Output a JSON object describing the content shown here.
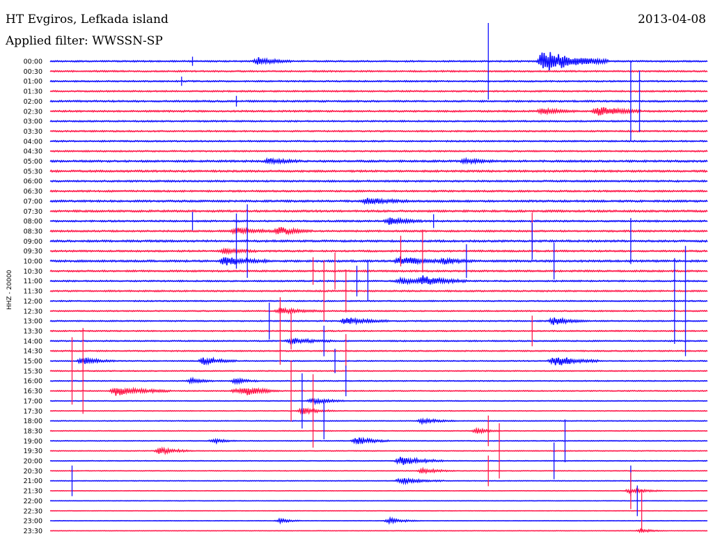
{
  "header": {
    "station": "HT Evgiros, Lefkada island",
    "date": "2013-04-08",
    "filter_label": "Applied filter: WWSSN-SP"
  },
  "chart_data": {
    "type": "line",
    "title": "HT Evgiros, Lefkada island",
    "subtitle": "Applied filter: WWSSN-SP",
    "date": "2013-04-08",
    "ylabel": "HHZ - 20000",
    "xlabel": "",
    "grid": false,
    "trace_colors": [
      "#1010ff",
      "#ff1a4b"
    ],
    "row_labels": [
      "00:00",
      "00:30",
      "01:00",
      "01:30",
      "02:00",
      "02:30",
      "03:00",
      "03:30",
      "04:00",
      "04:30",
      "05:00",
      "05:30",
      "06:00",
      "06:30",
      "07:00",
      "07:30",
      "08:00",
      "08:30",
      "09:00",
      "09:30",
      "10:00",
      "10:30",
      "11:00",
      "11:30",
      "12:00",
      "12:30",
      "13:00",
      "13:30",
      "14:00",
      "14:30",
      "15:00",
      "15:30",
      "16:00",
      "16:30",
      "17:00",
      "17:30",
      "18:00",
      "18:30",
      "19:00",
      "19:30",
      "20:00",
      "20:30",
      "21:00",
      "21:30",
      "22:00",
      "22:30",
      "23:00",
      "23:30"
    ],
    "minutes_per_row": 30,
    "noise_level": [
      0.6,
      0.6,
      0.6,
      0.6,
      0.7,
      0.7,
      0.6,
      0.6,
      0.6,
      0.6,
      0.8,
      0.8,
      0.7,
      0.7,
      0.8,
      0.8,
      0.7,
      0.7,
      0.8,
      0.7,
      0.8,
      0.7,
      0.6,
      0.6,
      0.5,
      0.5,
      0.5,
      0.5,
      0.5,
      0.5,
      0.4,
      0.4,
      0.4,
      0.4,
      0.3,
      0.3,
      0.3,
      0.3,
      0.3,
      0.3,
      0.3,
      0.25,
      0.25,
      0.2,
      0.15,
      0.15,
      0.15,
      0.15
    ],
    "events": [
      {
        "row": 0,
        "minute": 9.5,
        "amplitude": 4.0,
        "duration_min": 1.5
      },
      {
        "row": 0,
        "minute": 22.5,
        "amplitude": 12.0,
        "duration_min": 3.0
      },
      {
        "row": 5,
        "minute": 22.5,
        "amplitude": 3.0,
        "duration_min": 1.5
      },
      {
        "row": 5,
        "minute": 25.0,
        "amplitude": 5.0,
        "duration_min": 2.0
      },
      {
        "row": 10,
        "minute": 10.0,
        "amplitude": 2.5,
        "duration_min": 1.5
      },
      {
        "row": 10,
        "minute": 19.0,
        "amplitude": 2.5,
        "duration_min": 1.5
      },
      {
        "row": 14,
        "minute": 14.5,
        "amplitude": 3.0,
        "duration_min": 2.0
      },
      {
        "row": 16,
        "minute": 15.5,
        "amplitude": 4.0,
        "duration_min": 1.5
      },
      {
        "row": 17,
        "minute": 8.5,
        "amplitude": 3.0,
        "duration_min": 2.0
      },
      {
        "row": 17,
        "minute": 10.5,
        "amplitude": 4.0,
        "duration_min": 1.5
      },
      {
        "row": 19,
        "minute": 8.0,
        "amplitude": 2.5,
        "duration_min": 1.5
      },
      {
        "row": 20,
        "minute": 8.0,
        "amplitude": 5.0,
        "duration_min": 2.0
      },
      {
        "row": 20,
        "minute": 16.0,
        "amplitude": 5.0,
        "duration_min": 2.0
      },
      {
        "row": 20,
        "minute": 18.0,
        "amplitude": 3.0,
        "duration_min": 1.5
      },
      {
        "row": 22,
        "minute": 17.0,
        "amplitude": 5.0,
        "duration_min": 2.0
      },
      {
        "row": 22,
        "minute": 16.0,
        "amplitude": 3.0,
        "duration_min": 1.5
      },
      {
        "row": 25,
        "minute": 10.5,
        "amplitude": 3.0,
        "duration_min": 2.0
      },
      {
        "row": 26,
        "minute": 13.5,
        "amplitude": 3.5,
        "duration_min": 2.0
      },
      {
        "row": 26,
        "minute": 23.0,
        "amplitude": 4.0,
        "duration_min": 1.5
      },
      {
        "row": 28,
        "minute": 11.0,
        "amplitude": 3.0,
        "duration_min": 2.0
      },
      {
        "row": 30,
        "minute": 1.5,
        "amplitude": 4.0,
        "duration_min": 1.5
      },
      {
        "row": 30,
        "minute": 7.0,
        "amplitude": 4.0,
        "duration_min": 1.5
      },
      {
        "row": 30,
        "minute": 23.0,
        "amplitude": 6.0,
        "duration_min": 2.0
      },
      {
        "row": 32,
        "minute": 6.5,
        "amplitude": 2.5,
        "duration_min": 1.0
      },
      {
        "row": 32,
        "minute": 8.5,
        "amplitude": 2.5,
        "duration_min": 1.0
      },
      {
        "row": 33,
        "minute": 3.0,
        "amplitude": 5.0,
        "duration_min": 2.5
      },
      {
        "row": 33,
        "minute": 9.0,
        "amplitude": 3.5,
        "duration_min": 1.5
      },
      {
        "row": 33,
        "minute": 8.5,
        "amplitude": 2.5,
        "duration_min": 1.5
      },
      {
        "row": 34,
        "minute": 12.0,
        "amplitude": 3.0,
        "duration_min": 1.5
      },
      {
        "row": 35,
        "minute": 11.5,
        "amplitude": 3.5,
        "duration_min": 1.5
      },
      {
        "row": 36,
        "minute": 17.0,
        "amplitude": 2.5,
        "duration_min": 1.5
      },
      {
        "row": 37,
        "minute": 19.5,
        "amplitude": 2.5,
        "duration_min": 1.0
      },
      {
        "row": 38,
        "minute": 14.0,
        "amplitude": 4.0,
        "duration_min": 1.5
      },
      {
        "row": 38,
        "minute": 7.5,
        "amplitude": 2.5,
        "duration_min": 1.0
      },
      {
        "row": 39,
        "minute": 5.0,
        "amplitude": 3.5,
        "duration_min": 1.5
      },
      {
        "row": 40,
        "minute": 16.0,
        "amplitude": 5.0,
        "duration_min": 2.0
      },
      {
        "row": 41,
        "minute": 17.0,
        "amplitude": 2.5,
        "duration_min": 1.5
      },
      {
        "row": 42,
        "minute": 16.0,
        "amplitude": 3.0,
        "duration_min": 2.0
      },
      {
        "row": 43,
        "minute": 26.5,
        "amplitude": 2.5,
        "duration_min": 1.5
      },
      {
        "row": 46,
        "minute": 15.5,
        "amplitude": 2.5,
        "duration_min": 1.5
      },
      {
        "row": 46,
        "minute": 10.5,
        "amplitude": 2.0,
        "duration_min": 1.0
      },
      {
        "row": 47,
        "minute": 27.0,
        "amplitude": 2.0,
        "duration_min": 1.0
      }
    ],
    "spikes": [
      {
        "row": 0,
        "minute": 6.5,
        "amplitude": 3.0
      },
      {
        "row": 0,
        "minute": 20.0,
        "amplitude": 25.0
      },
      {
        "row": 2,
        "minute": 6.0,
        "amplitude": 3.0
      },
      {
        "row": 4,
        "minute": 8.5,
        "amplitude": 3.5
      },
      {
        "row": 4,
        "minute": 26.5,
        "amplitude": 26.0
      },
      {
        "row": 4,
        "minute": 26.9,
        "amplitude": 20.0
      },
      {
        "row": 16,
        "minute": 6.5,
        "amplitude": 6.0
      },
      {
        "row": 16,
        "minute": 17.5,
        "amplitude": 4.5
      },
      {
        "row": 17,
        "minute": 22.0,
        "amplitude": 12.0
      },
      {
        "row": 18,
        "minute": 8.5,
        "amplitude": 18.0
      },
      {
        "row": 18,
        "minute": 9.0,
        "amplitude": 24.0
      },
      {
        "row": 18,
        "minute": 22.0,
        "amplitude": 12.0
      },
      {
        "row": 18,
        "minute": 26.5,
        "amplitude": 15.0
      },
      {
        "row": 19,
        "minute": 16.0,
        "amplitude": 10.0
      },
      {
        "row": 19,
        "minute": 17.0,
        "amplitude": 14.0
      },
      {
        "row": 20,
        "minute": 19.0,
        "amplitude": 11.0
      },
      {
        "row": 20,
        "minute": 23.0,
        "amplitude": 12.0
      },
      {
        "row": 21,
        "minute": 12.0,
        "amplitude": 9.0
      },
      {
        "row": 21,
        "minute": 13.0,
        "amplitude": 12.0
      },
      {
        "row": 22,
        "minute": 14.0,
        "amplitude": 10.0
      },
      {
        "row": 22,
        "minute": 14.5,
        "amplitude": 13.0
      },
      {
        "row": 23,
        "minute": 12.5,
        "amplitude": 20.0
      },
      {
        "row": 23,
        "minute": 13.5,
        "amplitude": 14.0
      },
      {
        "row": 24,
        "minute": 28.5,
        "amplitude": 28.0
      },
      {
        "row": 24,
        "minute": 29.0,
        "amplitude": 36.0
      },
      {
        "row": 26,
        "minute": 10.0,
        "amplitude": 12.0
      },
      {
        "row": 27,
        "minute": 10.5,
        "amplitude": 22.0
      },
      {
        "row": 27,
        "minute": 11.0,
        "amplitude": 12.0
      },
      {
        "row": 27,
        "minute": 22.0,
        "amplitude": 10.0
      },
      {
        "row": 28,
        "minute": 12.5,
        "amplitude": 10.0
      },
      {
        "row": 29,
        "minute": 13.5,
        "amplitude": 11.0
      },
      {
        "row": 30,
        "minute": 13.0,
        "amplitude": 8.0
      },
      {
        "row": 31,
        "minute": 1.0,
        "amplitude": 22.0
      },
      {
        "row": 31,
        "minute": 1.5,
        "amplitude": 28.0
      },
      {
        "row": 32,
        "minute": 13.5,
        "amplitude": 10.0
      },
      {
        "row": 33,
        "minute": 11.0,
        "amplitude": 20.0
      },
      {
        "row": 34,
        "minute": 11.5,
        "amplitude": 18.0
      },
      {
        "row": 35,
        "minute": 12.0,
        "amplitude": 24.0
      },
      {
        "row": 36,
        "minute": 12.5,
        "amplitude": 12.0
      },
      {
        "row": 37,
        "minute": 20.0,
        "amplitude": 10.0
      },
      {
        "row": 38,
        "minute": 23.5,
        "amplitude": 14.0
      },
      {
        "row": 39,
        "minute": 20.5,
        "amplitude": 18.0
      },
      {
        "row": 40,
        "minute": 23.0,
        "amplitude": 12.0
      },
      {
        "row": 41,
        "minute": 20.0,
        "amplitude": 10.0
      },
      {
        "row": 42,
        "minute": 1.0,
        "amplitude": 10.0
      },
      {
        "row": 42,
        "minute": 26.5,
        "amplitude": 10.0
      },
      {
        "row": 43,
        "minute": 26.5,
        "amplitude": 12.0
      },
      {
        "row": 44,
        "minute": 26.8,
        "amplitude": 10.0
      },
      {
        "row": 45,
        "minute": 27.0,
        "amplitude": 14.0
      }
    ]
  }
}
